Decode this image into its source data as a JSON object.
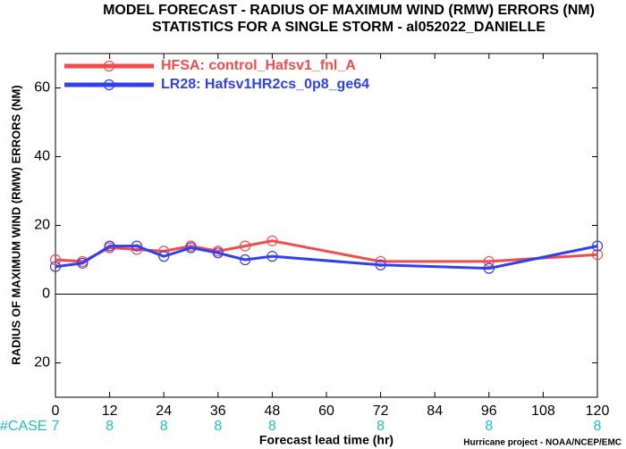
{
  "chart_data": {
    "type": "line",
    "title": [
      "MODEL FORECAST - RADIUS OF MAXIMUM WIND (RMW) ERRORS (NM)",
      "STATISTICS FOR A SINGLE STORM - al052022_DANIELLE"
    ],
    "y_label": "RADIUS OF MAXIMUM WIND (RMW) ERRORS (NM)",
    "x_label": "Forecast lead time (hr)",
    "footer": "Hurricane project - NOAA/NCEP/EMC",
    "x": [
      0,
      6,
      12,
      18,
      24,
      30,
      36,
      42,
      48,
      72,
      96,
      120
    ],
    "series": [
      {
        "name": "HFSA: control_Hafsv1_fnl_A",
        "color": "#f04c4c",
        "values": [
          10,
          9.5,
          13.5,
          13,
          12.5,
          14,
          12.5,
          14,
          15.5,
          9.5,
          9.5,
          11.5
        ]
      },
      {
        "name": "LR28: Hafsv1HR2cs_0p8_ge64",
        "color": "#3040f0",
        "values": [
          8,
          9,
          14,
          14,
          11,
          13.5,
          12,
          10,
          11,
          8.5,
          7.5,
          14
        ]
      }
    ],
    "cases": {
      "label": "#CASE",
      "x": [
        0,
        12,
        24,
        36,
        48,
        72,
        96,
        120
      ],
      "values": [
        7,
        8,
        8,
        8,
        8,
        8,
        8,
        8
      ],
      "color": "#20c0c0"
    },
    "xlim": [
      0,
      120
    ],
    "xticks": [
      0,
      12,
      24,
      36,
      48,
      60,
      72,
      84,
      96,
      108,
      120
    ],
    "ylim": [
      -30,
      70
    ],
    "yticks": [
      {
        "value": -20,
        "label": "20"
      },
      0,
      20,
      40,
      60
    ],
    "hline": 0,
    "legend": "upper left"
  }
}
